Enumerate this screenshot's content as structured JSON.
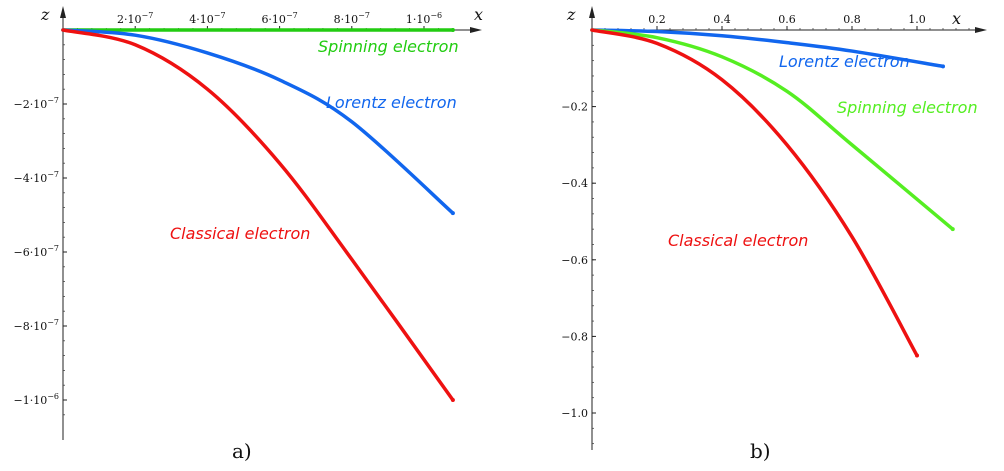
{
  "chart_data": [
    {
      "type": "line",
      "panel_label": "a)",
      "xlabel": "x",
      "ylabel": "z",
      "xlim": [
        0,
        1.1e-06
      ],
      "ylim": [
        -1.05e-06,
        0
      ],
      "x_ticks": [
        {
          "value": 2e-07,
          "label": "2·10",
          "exp": "−7"
        },
        {
          "value": 4e-07,
          "label": "4·10",
          "exp": "−7"
        },
        {
          "value": 6e-07,
          "label": "6·10",
          "exp": "−7"
        },
        {
          "value": 8e-07,
          "label": "8·10",
          "exp": "−7"
        },
        {
          "value": 1e-06,
          "label": "1·10",
          "exp": "−6"
        }
      ],
      "y_ticks": [
        {
          "value": -2e-07,
          "label": "−2·10",
          "exp": "−7"
        },
        {
          "value": -4e-07,
          "label": "−4·10",
          "exp": "−7"
        },
        {
          "value": -6e-07,
          "label": "−6·10",
          "exp": "−7"
        },
        {
          "value": -8e-07,
          "label": "−8·10",
          "exp": "−7"
        },
        {
          "value": -1e-06,
          "label": "−1·10",
          "exp": "−6"
        }
      ],
      "series": [
        {
          "name": "Spinning electron",
          "color": "#22cc11",
          "x": [
            0,
            2e-07,
            4e-07,
            6e-07,
            8e-07,
            1.08e-06
          ],
          "y": [
            0,
            0,
            0,
            0,
            0,
            0
          ]
        },
        {
          "name": "Lorentz electron",
          "color": "#1166ee",
          "x": [
            0,
            2e-07,
            4e-07,
            6e-07,
            8e-07,
            1.08e-06
          ],
          "y": [
            0,
            -1.4e-08,
            -6.2e-08,
            -1.35e-07,
            -2.48e-07,
            -4.95e-07
          ]
        },
        {
          "name": "Classical electron",
          "color": "#ee1111",
          "x": [
            0,
            2e-07,
            4e-07,
            6e-07,
            8e-07,
            1.08e-06
          ],
          "y": [
            0,
            -4e-08,
            -1.6e-07,
            -3.6e-07,
            -6.2e-07,
            -1e-06
          ]
        }
      ]
    },
    {
      "type": "line",
      "panel_label": "b)",
      "xlabel": "x",
      "ylabel": "z",
      "xlim": [
        0,
        1.18
      ],
      "ylim": [
        -1.1,
        0
      ],
      "x_ticks": [
        {
          "value": 0.2,
          "label": "0.2"
        },
        {
          "value": 0.4,
          "label": "0.4"
        },
        {
          "value": 0.6,
          "label": "0.6"
        },
        {
          "value": 0.8,
          "label": "0.8"
        },
        {
          "value": 1.0,
          "label": "1.0"
        }
      ],
      "y_ticks": [
        {
          "value": -0.2,
          "label": "−0.2"
        },
        {
          "value": -0.4,
          "label": "−0.4"
        },
        {
          "value": -0.6,
          "label": "−0.6"
        },
        {
          "value": -0.8,
          "label": "−0.8"
        },
        {
          "value": -1.0,
          "label": "−1.0"
        }
      ],
      "series": [
        {
          "name": "Lorentz electron",
          "color": "#1166ee",
          "x": [
            0,
            0.2,
            0.4,
            0.6,
            0.8,
            1.08
          ],
          "y": [
            0,
            -0.004,
            -0.015,
            -0.033,
            -0.055,
            -0.095
          ]
        },
        {
          "name": "Spinning electron",
          "color": "#55ee22",
          "x": [
            0,
            0.2,
            0.4,
            0.6,
            0.8,
            1.11
          ],
          "y": [
            0,
            -0.02,
            -0.07,
            -0.16,
            -0.3,
            -0.52
          ]
        },
        {
          "name": "Classical electron",
          "color": "#ee1111",
          "x": [
            0,
            0.2,
            0.4,
            0.6,
            0.8,
            1.0
          ],
          "y": [
            0,
            -0.035,
            -0.13,
            -0.3,
            -0.54,
            -0.85
          ]
        }
      ]
    }
  ]
}
